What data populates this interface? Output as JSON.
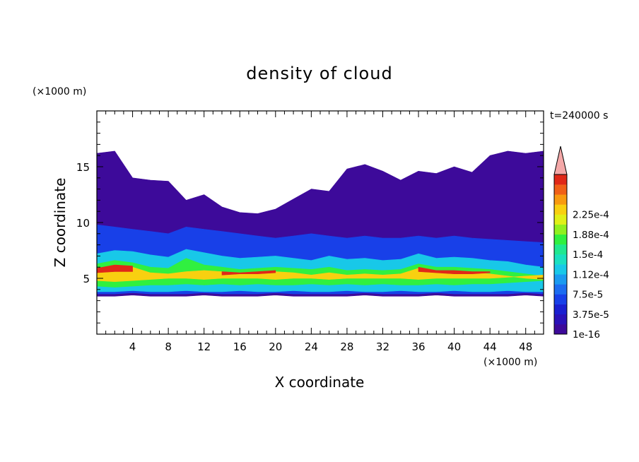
{
  "chart_data": {
    "type": "heatmap",
    "title": "density of cloud",
    "xlabel": "X coordinate",
    "ylabel": "Z coordinate",
    "x_unit": "(×1000 m)",
    "y_unit": "(×1000 m)",
    "time_label": "t=240000 s",
    "xlim": [
      0,
      50
    ],
    "ylim": [
      0,
      20
    ],
    "x_ticks": [
      "4",
      "8",
      "12",
      "16",
      "20",
      "24",
      "28",
      "32",
      "36",
      "40",
      "44",
      "48"
    ],
    "y_ticks": [
      "5",
      "10",
      "15"
    ],
    "colorbar": {
      "levels": [
        "1e-16",
        "3.75e-5",
        "7.5e-5",
        "1.12e-4",
        "1.5e-4",
        "1.88e-4",
        "2.25e-4"
      ],
      "colors": [
        "#3d0a9a",
        "#2a12b8",
        "#1a1fd0",
        "#1840e8",
        "#1c6cf0",
        "#1a9af0",
        "#18c8e8",
        "#1ae0c0",
        "#20e890",
        "#30f040",
        "#90f020",
        "#e0f018",
        "#f8d010",
        "#f89a10",
        "#f06018",
        "#e02818",
        "#f4a8a8"
      ]
    },
    "layers": [
      {
        "level": "1e-16",
        "z_bottom": [
          3.4,
          3.4,
          3.5,
          3.4,
          3.4,
          3.4,
          3.5,
          3.4,
          3.4,
          3.4,
          3.5,
          3.4,
          3.4,
          3.4,
          3.4,
          3.5,
          3.4,
          3.4,
          3.4,
          3.5,
          3.4,
          3.4,
          3.4,
          3.4,
          3.5,
          3.4
        ],
        "z_top": [
          16.2,
          16.4,
          14.0,
          13.8,
          13.7,
          12.0,
          12.5,
          11.4,
          10.9,
          10.8,
          11.2,
          12.1,
          13.0,
          12.8,
          14.8,
          15.2,
          14.6,
          13.8,
          14.6,
          14.4,
          15.0,
          14.5,
          16.0,
          16.4,
          16.2,
          16.4
        ]
      },
      {
        "level": "3.75e-5",
        "z_bottom": [
          3.6,
          3.6,
          3.7,
          3.6,
          3.6,
          3.6,
          3.7,
          3.6,
          3.6,
          3.6,
          3.7,
          3.6,
          3.6,
          3.6,
          3.6,
          3.7,
          3.6,
          3.6,
          3.6,
          3.7,
          3.6,
          3.6,
          3.6,
          3.6,
          3.7,
          3.6
        ],
        "z_top": [
          9.8,
          9.6,
          9.4,
          9.2,
          9.0,
          9.6,
          9.4,
          9.2,
          9.0,
          8.8,
          8.6,
          8.8,
          9.0,
          8.8,
          8.6,
          8.8,
          8.6,
          8.6,
          8.8,
          8.6,
          8.8,
          8.6,
          8.5,
          8.4,
          8.3,
          8.2
        ]
      },
      {
        "level": "7.5e-5",
        "z_bottom": [
          3.8,
          3.8,
          3.9,
          3.8,
          3.8,
          3.9,
          3.8,
          3.8,
          3.9,
          3.8,
          3.8,
          3.9,
          3.8,
          3.8,
          3.9,
          3.8,
          3.8,
          3.9,
          3.8,
          3.8,
          3.9,
          3.8,
          3.8,
          3.9,
          3.8,
          3.8
        ],
        "z_top": [
          7.2,
          7.5,
          7.4,
          7.1,
          6.9,
          7.6,
          7.3,
          7.0,
          6.8,
          6.9,
          7.0,
          6.8,
          6.6,
          7.0,
          6.7,
          6.8,
          6.6,
          6.7,
          7.2,
          6.8,
          6.9,
          6.8,
          6.6,
          6.5,
          6.2,
          6.0
        ]
      },
      {
        "level": "1.12e-4",
        "z_bottom": [
          4.3,
          4.2,
          4.3,
          4.4,
          4.4,
          4.5,
          4.4,
          4.5,
          4.4,
          4.5,
          4.4,
          4.4,
          4.5,
          4.4,
          4.5,
          4.4,
          4.5,
          4.4,
          4.4,
          4.5,
          4.4,
          4.5,
          4.5,
          4.6,
          4.7,
          4.8
        ],
        "z_top": [
          6.3,
          6.6,
          6.4,
          6.0,
          5.9,
          6.8,
          6.2,
          6.0,
          5.8,
          5.9,
          6.0,
          5.9,
          5.8,
          6.0,
          5.7,
          5.8,
          5.7,
          5.8,
          6.3,
          6.0,
          6.0,
          5.9,
          5.8,
          5.6,
          5.4,
          5.2
        ]
      },
      {
        "level": "1.5e-4",
        "z_bottom": [
          4.8,
          4.7,
          4.8,
          4.9,
          5.0,
          5.0,
          4.9,
          5.0,
          5.0,
          5.0,
          4.9,
          5.0,
          5.0,
          4.9,
          5.0,
          5.0,
          5.0,
          5.0,
          4.9,
          5.0,
          5.0,
          5.0,
          5.0,
          5.1,
          5.2,
          5.3
        ],
        "z_top": [
          5.8,
          6.2,
          6.0,
          5.5,
          5.4,
          5.6,
          5.7,
          5.6,
          5.4,
          5.5,
          5.6,
          5.5,
          5.3,
          5.5,
          5.3,
          5.4,
          5.3,
          5.4,
          5.9,
          5.6,
          5.6,
          5.5,
          5.4,
          5.2,
          5.0,
          4.9
        ]
      },
      {
        "level": "1.88e-4",
        "z_bottom": [
          5.5,
          5.6,
          5.6,
          0,
          0,
          0,
          0,
          5.3,
          5.4,
          5.4,
          5.5,
          0,
          0,
          0,
          0,
          0,
          0,
          0,
          5.6,
          5.5,
          5.4,
          5.4,
          5.5,
          0,
          0,
          0
        ],
        "z_top": [
          5.9,
          6.2,
          6.1,
          0,
          0,
          0,
          0,
          5.6,
          5.5,
          5.6,
          5.7,
          0,
          0,
          0,
          0,
          0,
          0,
          0,
          6.0,
          5.7,
          5.7,
          5.6,
          5.6,
          0,
          0,
          0
        ]
      }
    ]
  }
}
